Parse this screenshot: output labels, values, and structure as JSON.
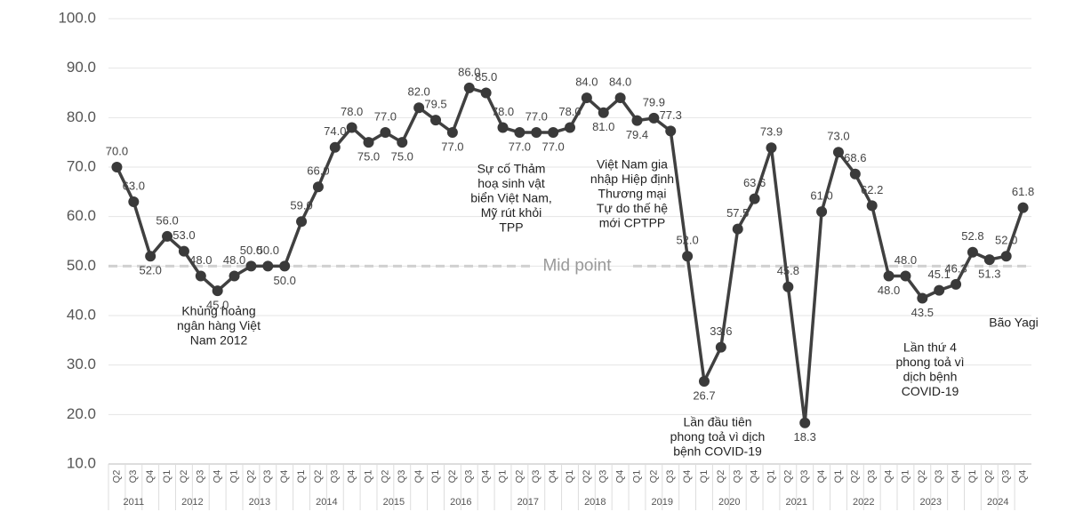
{
  "chart_data": {
    "type": "line",
    "categories": [
      "Q2",
      "Q3",
      "Q4",
      "Q1",
      "Q2",
      "Q3",
      "Q4",
      "Q1",
      "Q2",
      "Q3",
      "Q4",
      "Q1",
      "Q2",
      "Q3",
      "Q4",
      "Q1",
      "Q2",
      "Q3",
      "Q4",
      "Q1",
      "Q2",
      "Q3",
      "Q4",
      "Q1",
      "Q2",
      "Q3",
      "Q4",
      "Q1",
      "Q2",
      "Q3",
      "Q4",
      "Q1",
      "Q2",
      "Q3",
      "Q4",
      "Q1",
      "Q2",
      "Q3",
      "Q4",
      "Q1",
      "Q2",
      "Q3",
      "Q4",
      "Q1",
      "Q2",
      "Q3",
      "Q4",
      "Q1",
      "Q2",
      "Q3",
      "Q4",
      "Q1",
      "Q2",
      "Q3",
      "Q4"
    ],
    "years": [
      "2011",
      "2012",
      "2013",
      "2014",
      "2015",
      "2016",
      "2017",
      "2018",
      "2019",
      "2020",
      "2021",
      "2022",
      "2023",
      "2024"
    ],
    "values": [
      70,
      63,
      52,
      56,
      53,
      48,
      45,
      48,
      50,
      50,
      50,
      59,
      66,
      74,
      78,
      75,
      77,
      75,
      82,
      79.5,
      77,
      86,
      85,
      78,
      77,
      77,
      77,
      78,
      84,
      81,
      84,
      79.4,
      79.9,
      77.3,
      52,
      26.7,
      33.6,
      57.5,
      63.6,
      73.9,
      45.8,
      18.3,
      61,
      73,
      68.6,
      62.2,
      48,
      48,
      43.5,
      45.1,
      46.3,
      52.8,
      51.3,
      52,
      61.8
    ],
    "value_labels": [
      "70.0",
      "63.0",
      "52.0",
      "56.0",
      "53.0",
      "48.0",
      "45.0",
      "48.0",
      "50.0",
      "50.0",
      "50.0",
      "59.0",
      "66.0",
      "74.0",
      "78.0",
      "75.0",
      "77.0",
      "75.0",
      "82.0",
      "79.5",
      "77.0",
      "86.0",
      "85.0",
      "78.0",
      "77.0",
      "77.0",
      "77.0",
      "78.0",
      "84.0",
      "81.0",
      "84.0",
      "79.4",
      "79.9",
      "77.3",
      "52.0",
      "26.7",
      "33.6",
      "57.5",
      "63.6",
      "73.9",
      "45.8",
      "18.3",
      "61.0",
      "73.0",
      "68.6",
      "62.2",
      "48.0",
      "48.0",
      "43.5",
      "45.1",
      "46.3",
      "52.8",
      "51.3",
      "52.0",
      "61.8"
    ],
    "color": "#404040",
    "ylim": [
      10,
      100
    ],
    "yticks": [
      {
        "value": 10,
        "label": "10.0"
      },
      {
        "value": 20,
        "label": "20.0"
      },
      {
        "value": 30,
        "label": "30.0"
      },
      {
        "value": 40,
        "label": "40.0"
      },
      {
        "value": 50,
        "label": "50.0"
      },
      {
        "value": 60,
        "label": "60.0"
      },
      {
        "value": 70,
        "label": "70.0"
      },
      {
        "value": 80,
        "label": "80.0"
      },
      {
        "value": 90,
        "label": "90.0"
      },
      {
        "value": 100,
        "label": "100.0"
      }
    ],
    "grid": true,
    "reference_line": {
      "value": 50,
      "label": "Mid point"
    },
    "annotations": [
      {
        "lines": [
          "Khủng hoảng",
          "ngân hàng Việt",
          "Nam 2012"
        ]
      },
      {
        "lines": [
          "Sự cố Thảm",
          "hoạ sinh vật",
          "biển Việt Nam,",
          "Mỹ rút khỏi",
          "TPP"
        ]
      },
      {
        "lines": [
          "Việt Nam gia",
          "nhập Hiệp định",
          "Thương mại",
          "Tự do thế hệ",
          "mới CPTPP"
        ]
      },
      {
        "lines": [
          "Lần đầu tiên",
          "phong toả vì dịch",
          "bệnh COVID-19"
        ]
      },
      {
        "lines": [
          "Lần thứ 4",
          "phong toả vì",
          "dịch bệnh",
          "COVID-19"
        ]
      },
      {
        "lines": [
          "Bão Yagi"
        ]
      }
    ]
  }
}
